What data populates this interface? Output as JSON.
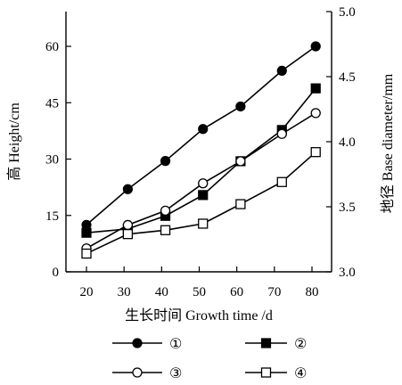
{
  "chart_data": {
    "type": "line",
    "x": [
      20,
      31,
      41,
      51,
      61,
      72,
      81
    ],
    "xlabel": "生长时间   Growth time /d",
    "ylabel_left": "高   Height/cm",
    "ylabel_right": "地径  Base diameter/mm",
    "xlim": [
      15,
      85
    ],
    "ylim_left": [
      0,
      70
    ],
    "ylim_right": [
      3.0,
      5.0
    ],
    "x_ticks": [
      "20",
      "30",
      "40",
      "50",
      "60",
      "70",
      "80"
    ],
    "y_left_ticks": [
      "0",
      "15",
      "30",
      "45",
      "60"
    ],
    "y_right_ticks": [
      "3.0",
      "3.5",
      "4.0",
      "4.5",
      "5.0"
    ],
    "grid": false,
    "legend_position": "bottom",
    "series": [
      {
        "name": "①",
        "axis": "left",
        "marker": "circle-filled",
        "values": [
          12.5,
          22,
          29.5,
          38,
          44,
          53.5,
          60
        ]
      },
      {
        "name": "②",
        "axis": "right",
        "marker": "square-filled",
        "values": [
          3.3,
          3.33,
          3.43,
          3.59,
          3.85,
          4.09,
          4.41
        ]
      },
      {
        "name": "③",
        "axis": "right",
        "marker": "circle-open",
        "values": [
          3.18,
          3.36,
          3.47,
          3.68,
          3.85,
          4.06,
          4.22
        ]
      },
      {
        "name": "④",
        "axis": "right",
        "marker": "square-open",
        "values": [
          3.14,
          3.29,
          3.32,
          3.37,
          3.52,
          3.69,
          3.92
        ]
      }
    ]
  }
}
